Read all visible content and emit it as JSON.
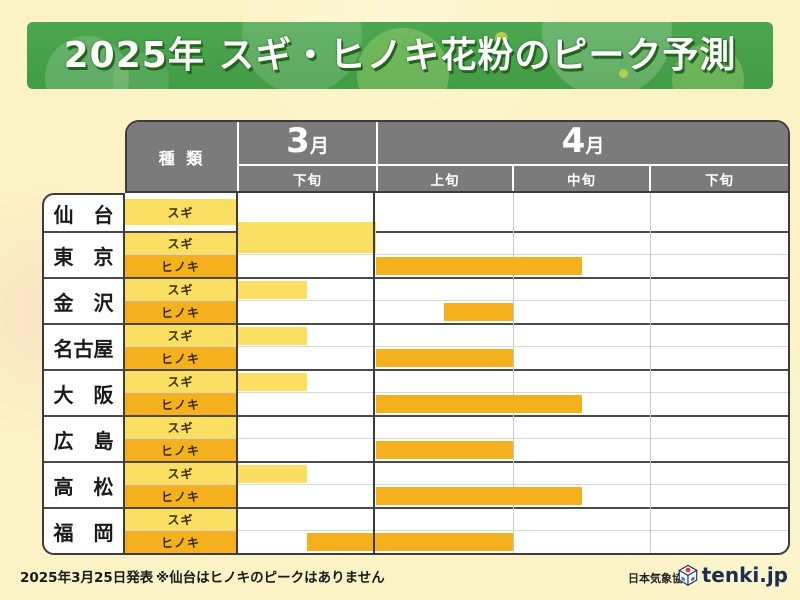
{
  "title": "2025年 スギ・ヒノキ花粉のピーク予測",
  "colors": {
    "background": "#fbf2c5",
    "banner_green": "#47a24b",
    "title_text": "#ffffff",
    "title_shadow_green": "#23651f",
    "header_gray": "#7b7b7b",
    "sugi_yellow": "#fbdf62",
    "hinoki_orange": "#f5b01e",
    "grid_border_dark": "#3c3c3c",
    "logo_navy": "#1b2c55",
    "logo_red": "#e23b2e",
    "logo_blue": "#2e6db4"
  },
  "table": {
    "type_header": "種 類",
    "months": [
      {
        "label": "3月",
        "span": 1
      },
      {
        "label": "4月",
        "span": 3
      }
    ],
    "periods": [
      "下旬",
      "上旬",
      "中旬",
      "下旬"
    ],
    "species": {
      "sugi": "スギ",
      "hinoki": "ヒノキ"
    }
  },
  "chart_data": {
    "type": "bar",
    "subtype": "horizontal-timeline-gantt",
    "title": "2025年 スギ・ヒノキ花粉のピーク予測",
    "time_axis": {
      "unit_labels": [
        "3月下旬",
        "4月上旬",
        "4月中旬",
        "4月下旬"
      ],
      "range": [
        0,
        4
      ],
      "note": "values are in column units; 0 = start of 3月下旬, 4 = end of 4月下旬"
    },
    "rows": [
      {
        "city": "仙　台",
        "bars": [
          {
            "species": "スギ",
            "start": 0,
            "end": 1
          }
        ]
      },
      {
        "city": "東　京",
        "bars": [
          {
            "species": "スギ",
            "start": 0,
            "end": 1
          },
          {
            "species": "ヒノキ",
            "start": 1,
            "end": 2.5
          }
        ]
      },
      {
        "city": "金　沢",
        "bars": [
          {
            "species": "スギ",
            "start": 0,
            "end": 0.5
          },
          {
            "species": "ヒノキ",
            "start": 1.5,
            "end": 2
          }
        ]
      },
      {
        "city": "名古屋",
        "bars": [
          {
            "species": "スギ",
            "start": 0,
            "end": 0.5
          },
          {
            "species": "ヒノキ",
            "start": 1,
            "end": 2
          }
        ]
      },
      {
        "city": "大　阪",
        "bars": [
          {
            "species": "スギ",
            "start": 0,
            "end": 0.5
          },
          {
            "species": "ヒノキ",
            "start": 1,
            "end": 2.5
          }
        ]
      },
      {
        "city": "広　島",
        "bars": [
          {
            "species": "スギ",
            "start": null,
            "end": null
          },
          {
            "species": "ヒノキ",
            "start": 1,
            "end": 2
          }
        ]
      },
      {
        "city": "高　松",
        "bars": [
          {
            "species": "スギ",
            "start": 0,
            "end": 0.5
          },
          {
            "species": "ヒノキ",
            "start": 1,
            "end": 2.5
          }
        ]
      },
      {
        "city": "福　岡",
        "bars": [
          {
            "species": "スギ",
            "start": null,
            "end": null
          },
          {
            "species": "ヒノキ",
            "start": 0.5,
            "end": 2
          }
        ]
      }
    ]
  },
  "footer": {
    "date": "2025年3月25日発表",
    "note": "※仙台はヒノキのピークはありません",
    "org": "日本気象協会",
    "logo_text": "tenki.jp"
  }
}
